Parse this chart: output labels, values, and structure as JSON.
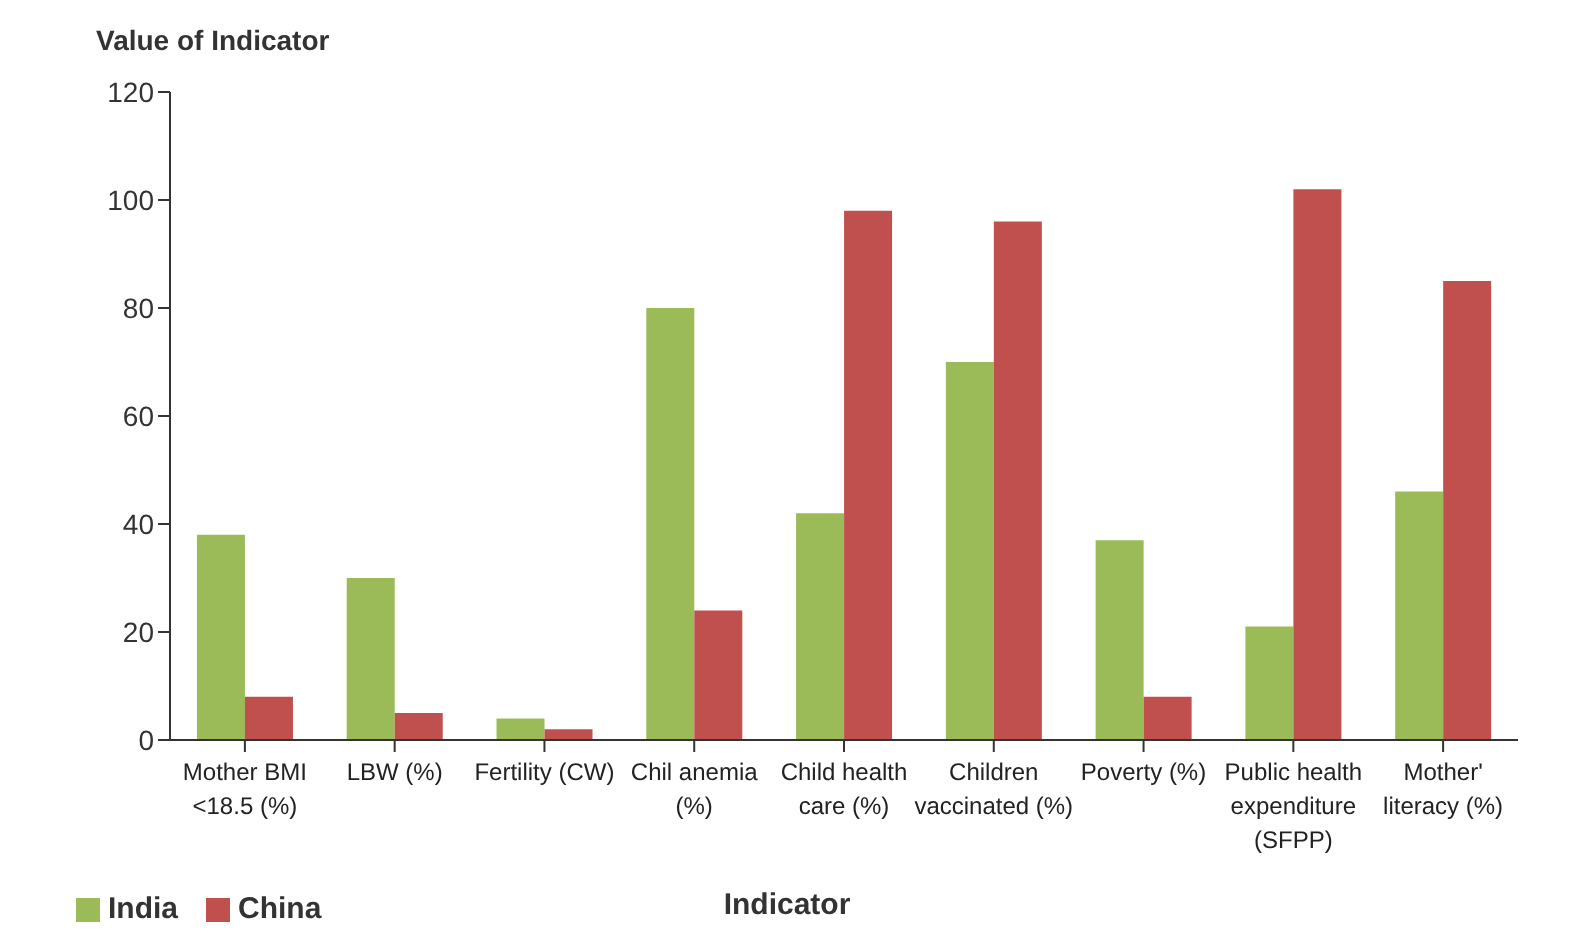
{
  "chart_data": {
    "type": "bar",
    "xlabel": "Indicator",
    "ylabel": "Value of Indicator",
    "categories": [
      "Mother BMI <18.5 (%)",
      "LBW (%)",
      "Fertility (CW)",
      "Chil anemia (%)",
      "Child health care (%)",
      "Children vaccinated (%)",
      "Poverty (%)",
      "Public health expenditure (SFPP)",
      "Mother' literacy (%)"
    ],
    "series": [
      {
        "name": "India",
        "color": "#9bbb59",
        "values": [
          38,
          30,
          4,
          80,
          42,
          70,
          37,
          21,
          46
        ]
      },
      {
        "name": "China",
        "color": "#c0504d",
        "values": [
          8,
          5,
          2,
          24,
          98,
          96,
          8,
          102,
          85
        ]
      }
    ],
    "ylim": [
      0,
      120
    ],
    "yticks": [
      0,
      20,
      40,
      60,
      80,
      100,
      120
    ],
    "grid": false,
    "legend": "bottom left"
  }
}
